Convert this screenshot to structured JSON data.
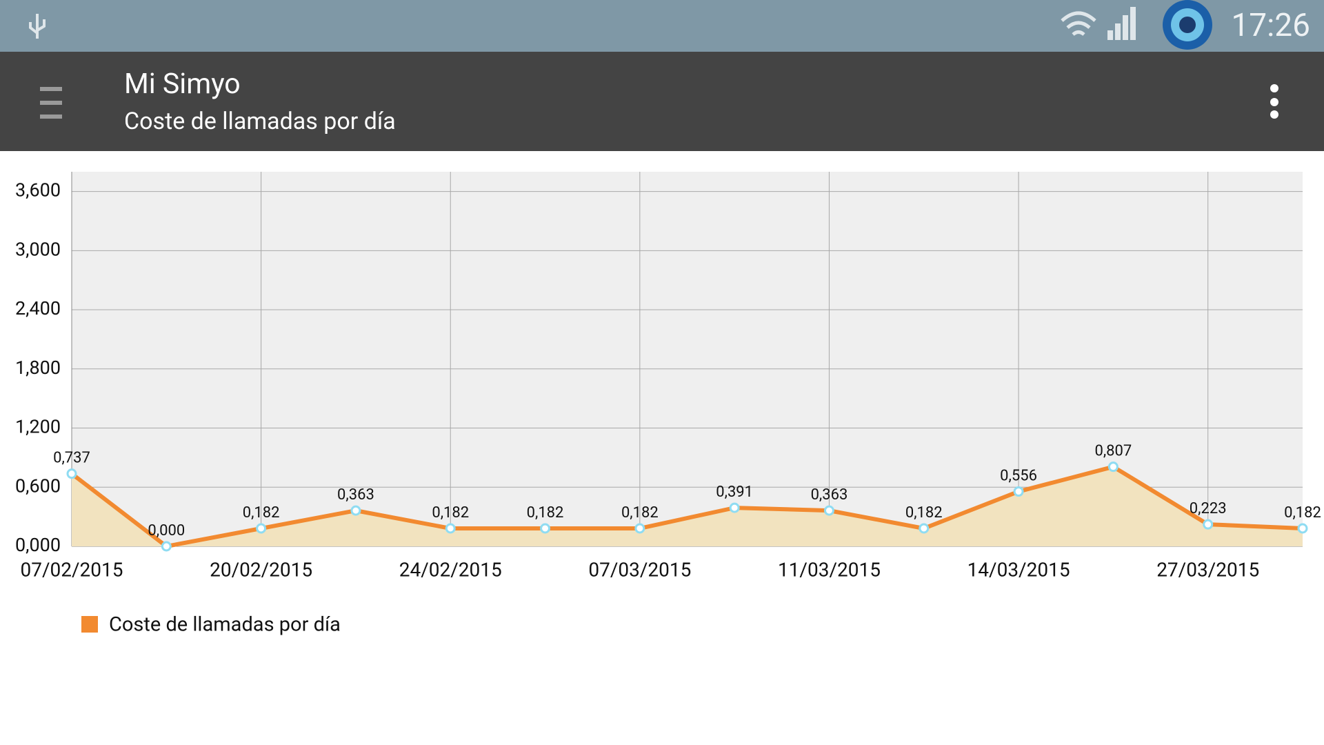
{
  "status_bar": {
    "time": "17:26"
  },
  "header": {
    "title": "Mi Simyo",
    "subtitle": "Coste de llamadas por día"
  },
  "chart_data": {
    "type": "line",
    "area": true,
    "categories": [
      "07/02/2015",
      null,
      "20/02/2015",
      null,
      "24/02/2015",
      null,
      "07/03/2015",
      null,
      "11/03/2015",
      null,
      "14/03/2015",
      null,
      "27/03/2015",
      null
    ],
    "series": [
      {
        "name": "Coste de llamadas por día",
        "color": "#f28a30",
        "fill": "#f2e3bf",
        "marker_color": "#8fdcf2",
        "values": [
          0.737,
          0,
          0.182,
          0.363,
          0.182,
          0.182,
          0.182,
          0.391,
          0.363,
          0.182,
          0.556,
          0.807,
          0.223,
          0.182
        ],
        "value_labels": [
          "0,737",
          "0,000",
          "0,182",
          "0,363",
          "0,182",
          "0,182",
          "0,182",
          "0,391",
          "0,363",
          "0,182",
          "0,556",
          "0,807",
          "0,223",
          "0,182"
        ]
      }
    ],
    "ylim": [
      0,
      3.8
    ],
    "yticks": [
      {
        "value": 0,
        "label": "0,000"
      },
      {
        "value": 0.6,
        "label": "0,600"
      },
      {
        "value": 1.2,
        "label": "1,200"
      },
      {
        "value": 1.8,
        "label": "1,800"
      },
      {
        "value": 2.4,
        "label": "2,400"
      },
      {
        "value": 3,
        "label": "3,000"
      },
      {
        "value": 3.6,
        "label": "3,600"
      }
    ],
    "grid": true,
    "legend": "bottom-left"
  }
}
